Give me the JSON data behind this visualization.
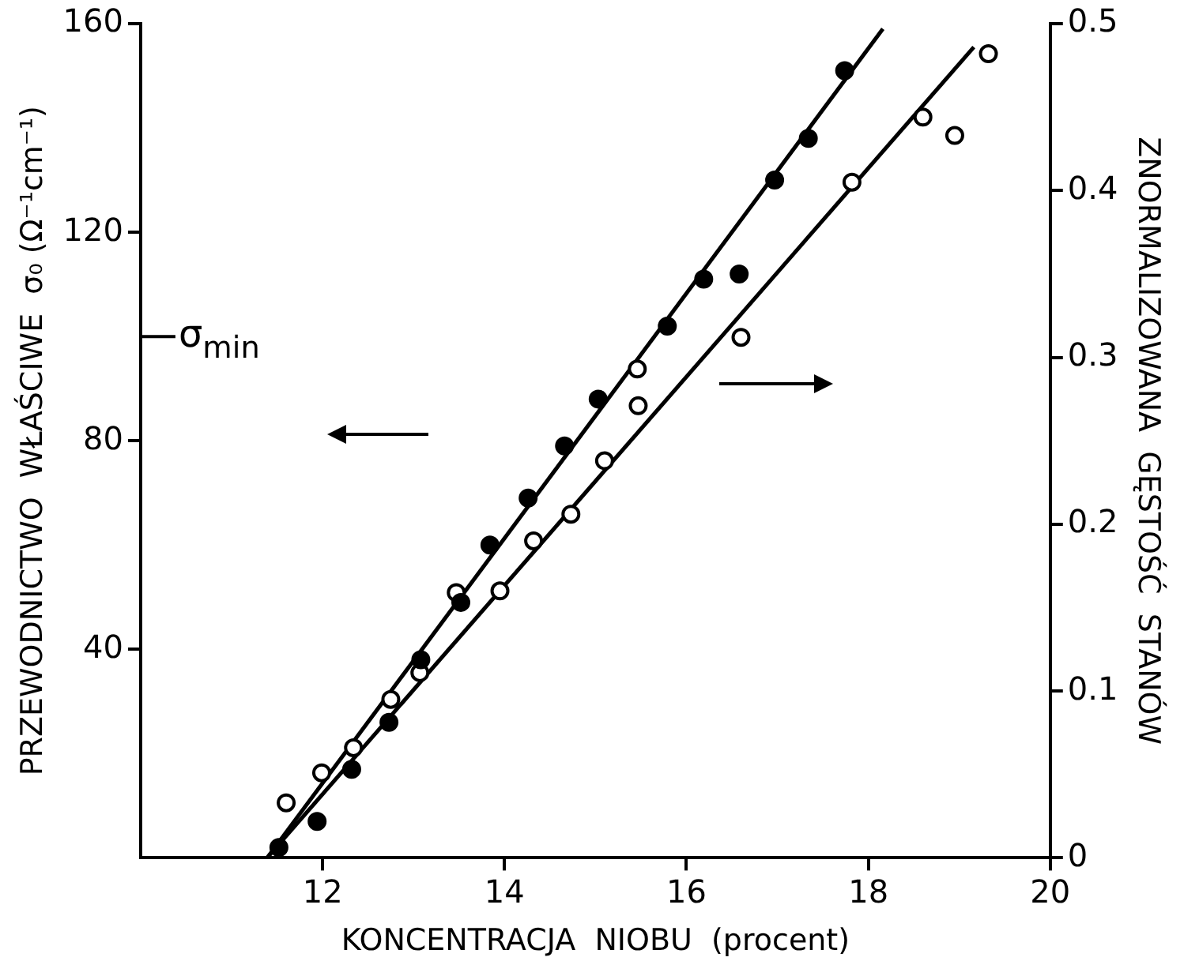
{
  "chart_data": {
    "type": "scatter",
    "xlabel": "KONCENTRACJA  NIOBU  (procent)",
    "ylabel": "PRZEWODNICTWO  WŁAŚCIWE  σ₀ (Ω⁻¹cm⁻¹)",
    "y2label": "ZNORMALIZOWANA  GĘSTOŚĆ  STANÓW",
    "xlim": [
      10,
      20
    ],
    "xticks": [
      12,
      14,
      16,
      18,
      20
    ],
    "ylim": [
      0,
      160
    ],
    "yticks": [
      40,
      80,
      120,
      160
    ],
    "y2lim": [
      0,
      0.5
    ],
    "y2ticks": [
      0,
      0.1,
      0.2,
      0.3,
      0.4,
      0.5
    ],
    "grid": false,
    "legend": false,
    "marker": "circle",
    "ref_lines": [
      {
        "axis": "y",
        "value": 100,
        "label": "σ$_{min}$"
      }
    ],
    "series": [
      {
        "color": "#000000",
        "x": [
          11.52,
          11.94,
          12.32,
          12.73,
          13.08,
          13.52,
          13.84,
          14.26,
          14.66,
          15.03,
          15.79,
          16.19,
          16.58,
          16.97,
          17.34,
          17.74
        ],
        "values": [
          2,
          7,
          17,
          26,
          38,
          49,
          60,
          69,
          79,
          88,
          102,
          111,
          112,
          130,
          138,
          151
        ]
      },
      {
        "color": "#ffffff",
        "axis": "y2",
        "x": [
          11.6,
          11.99,
          12.34,
          12.75,
          13.07,
          13.47,
          13.95,
          14.32,
          14.73,
          15.1,
          15.47,
          15.46,
          16.6,
          17.82,
          18.6,
          18.95,
          19.32
        ],
        "values": [
          0.033,
          0.051,
          0.066,
          0.095,
          0.111,
          0.159,
          0.16,
          0.19,
          0.206,
          0.238,
          0.271,
          0.293,
          0.312,
          0.405,
          0.444,
          0.433,
          0.482
        ]
      },
      {
        "type": "line",
        "color": "#000000",
        "marker": "none",
        "x": [
          11.39,
          18.16
        ],
        "values": [
          0,
          159
        ]
      },
      {
        "type": "line",
        "color": "#000000",
        "marker": "none",
        "axis": "y2",
        "x": [
          11.39,
          19.16
        ],
        "values": [
          0,
          0.486
        ]
      }
    ]
  }
}
